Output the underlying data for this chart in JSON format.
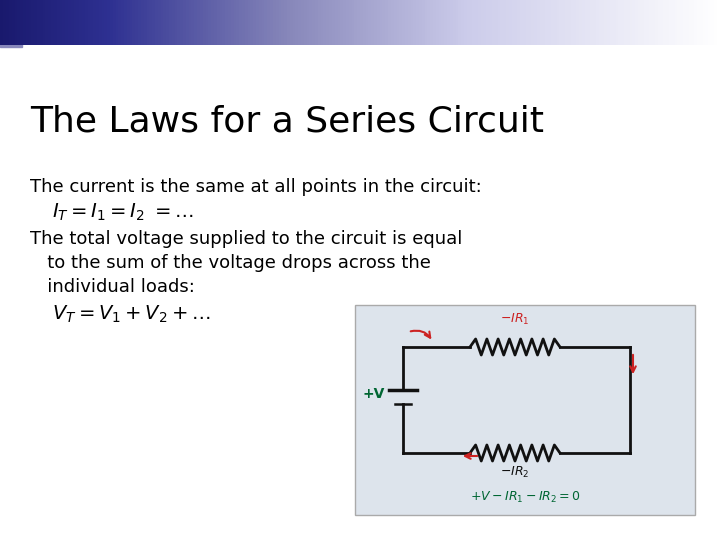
{
  "title": "The Laws for a Series Circuit",
  "background_color": "#ffffff",
  "title_color": "#000000",
  "title_fontsize": 26,
  "body_fontsize": 13,
  "math_fontsize": 13,
  "text_color": "#000000",
  "line1": "The current is the same at all points in the circuit:",
  "line2_math": "$I_T = I_1 = I_2\\ = \\ldots$",
  "line3a": "The total voltage supplied to the circuit is equal",
  "line3b": "   to the sum of the voltage drops across the",
  "line3c": "   individual loads:",
  "line4_math": "$V_T = V_1 + V_2 + \\ldots$",
  "circuit_bg": "#dde4ec",
  "circuit_border": "#aaaaaa",
  "wire_color": "#111111",
  "red_color": "#cc2222",
  "green_color": "#006633",
  "header_dark_blue": "#1a1a6e",
  "header_mid_blue": "#2e3192",
  "header_light_blue": "#8888bb"
}
